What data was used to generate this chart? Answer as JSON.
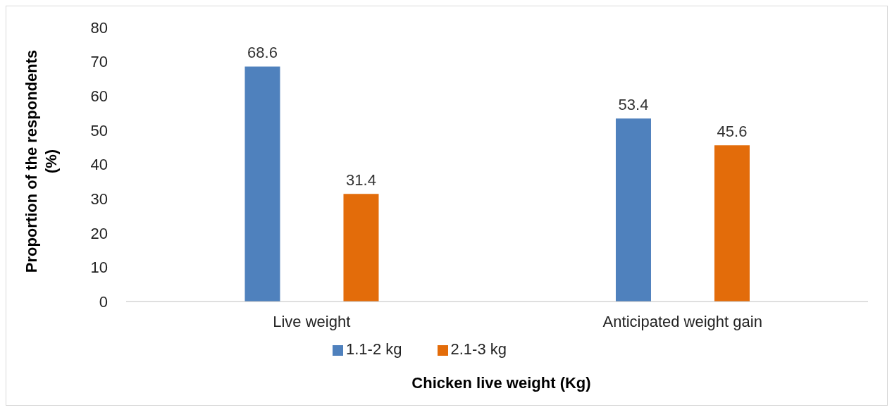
{
  "chart_data": {
    "type": "bar",
    "xlabel": "Chicken live weight (Kg)",
    "ylabel": "Proportion of the respondents (%)",
    "categories": [
      "Live weight",
      "Anticipated weight gain"
    ],
    "series": [
      {
        "name": "1.1-2 kg",
        "color": "#4f81bd",
        "values": [
          68.6,
          53.4
        ]
      },
      {
        "name": "2.1-3 kg",
        "color": "#e36c0a",
        "values": [
          31.4,
          45.6
        ]
      }
    ],
    "ylim": [
      0,
      80
    ],
    "yticks": [
      0,
      10,
      20,
      30,
      40,
      50,
      60,
      70,
      80
    ],
    "grid": false,
    "legend": "bottom",
    "data_labels": true
  }
}
